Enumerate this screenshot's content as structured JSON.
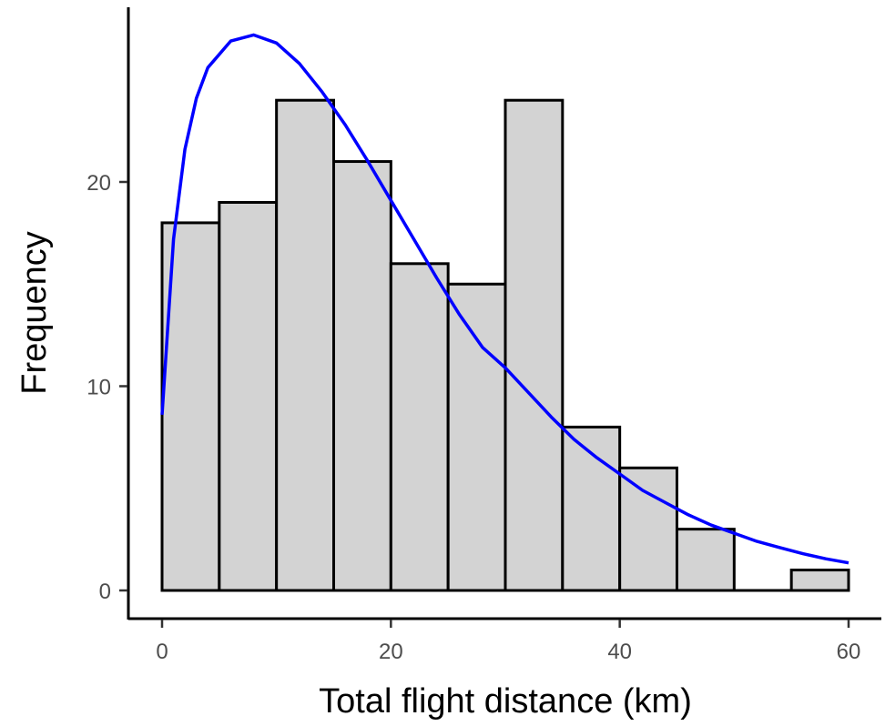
{
  "chart_data": {
    "type": "bar",
    "subtype": "histogram",
    "xlabel": "Total flight distance (km)",
    "ylabel": "Frequency",
    "xlim": [
      0,
      60
    ],
    "ylim": [
      0,
      27
    ],
    "x_ticks": [
      "0",
      "20",
      "40",
      "60"
    ],
    "y_ticks": [
      "0",
      "10",
      "20"
    ],
    "grid": false,
    "legend": "none",
    "bins": [
      {
        "start": 0,
        "end": 5,
        "count": 18
      },
      {
        "start": 5,
        "end": 10,
        "count": 19
      },
      {
        "start": 10,
        "end": 15,
        "count": 24
      },
      {
        "start": 15,
        "end": 20,
        "count": 21
      },
      {
        "start": 20,
        "end": 25,
        "count": 16
      },
      {
        "start": 25,
        "end": 30,
        "count": 15
      },
      {
        "start": 30,
        "end": 35,
        "count": 24
      },
      {
        "start": 35,
        "end": 40,
        "count": 8
      },
      {
        "start": 40,
        "end": 45,
        "count": 6
      },
      {
        "start": 45,
        "end": 50,
        "count": 3
      },
      {
        "start": 50,
        "end": 55,
        "count": 0
      },
      {
        "start": 55,
        "end": 60,
        "count": 1
      }
    ],
    "fit_curve": {
      "points": [
        [
          0,
          8.6
        ],
        [
          1,
          17.2
        ],
        [
          2,
          21.6
        ],
        [
          3,
          24.1
        ],
        [
          4,
          25.6
        ],
        [
          6,
          26.9
        ],
        [
          8,
          27.2
        ],
        [
          10,
          26.8
        ],
        [
          12,
          25.8
        ],
        [
          14,
          24.4
        ],
        [
          16,
          22.8
        ],
        [
          18,
          21.0
        ],
        [
          20,
          19.1
        ],
        [
          22,
          17.2
        ],
        [
          24,
          15.3
        ],
        [
          26,
          13.5
        ],
        [
          28,
          11.9
        ],
        [
          30,
          10.9
        ],
        [
          32,
          9.7
        ],
        [
          34,
          8.5
        ],
        [
          36,
          7.4
        ],
        [
          38,
          6.5
        ],
        [
          40,
          5.7
        ],
        [
          42,
          4.9
        ],
        [
          44,
          4.3
        ],
        [
          46,
          3.7
        ],
        [
          48,
          3.2
        ],
        [
          50,
          2.8
        ],
        [
          52,
          2.4
        ],
        [
          54,
          2.1
        ],
        [
          56,
          1.8
        ],
        [
          58,
          1.55
        ],
        [
          60,
          1.35
        ]
      ]
    },
    "colors": {
      "bar_fill": "#d3d3d3",
      "bar_stroke": "#000000",
      "curve": "#0000ff",
      "axis": "#000000",
      "tick_text": "#4d4d4d"
    }
  }
}
